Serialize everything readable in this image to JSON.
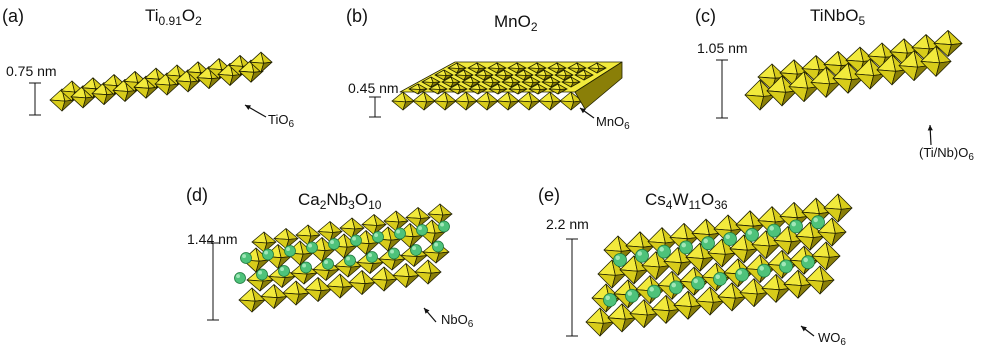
{
  "colors": {
    "octahedron_light": "#f2ea3c",
    "octahedron_mid": "#d8cc1a",
    "octahedron_dark": "#8a7f08",
    "edge": "#222200",
    "sphere": "#4ec27a",
    "sphere_dark": "#1f7a3e"
  },
  "panels": [
    {
      "label": "(a)",
      "formula": [
        {
          "t": "Ti"
        },
        {
          "s": "0.91"
        },
        {
          "t": "O"
        },
        {
          "s": "2"
        }
      ],
      "thickness": "0.75 nm",
      "polyhedron": [
        {
          "t": "TiO"
        },
        {
          "s": "6"
        }
      ]
    },
    {
      "label": "(b)",
      "formula": [
        {
          "t": "MnO"
        },
        {
          "s": "2"
        }
      ],
      "thickness": "0.45 nm",
      "polyhedron": [
        {
          "t": "MnO"
        },
        {
          "s": "6"
        }
      ]
    },
    {
      "label": "(c)",
      "formula": [
        {
          "t": "TiNbO"
        },
        {
          "s": "5"
        }
      ],
      "thickness": "1.05 nm",
      "polyhedron": [
        {
          "t": "(Ti/Nb)O"
        },
        {
          "s": "6"
        }
      ]
    },
    {
      "label": "(d)",
      "formula": [
        {
          "t": "Ca"
        },
        {
          "s": "2"
        },
        {
          "t": "Nb"
        },
        {
          "s": "3"
        },
        {
          "t": "O"
        },
        {
          "s": "10"
        }
      ],
      "thickness": "1.44 nm",
      "polyhedron": [
        {
          "t": "NbO"
        },
        {
          "s": "6"
        }
      ]
    },
    {
      "label": "(e)",
      "formula": [
        {
          "t": "Cs"
        },
        {
          "s": "4"
        },
        {
          "t": "W"
        },
        {
          "s": "11"
        },
        {
          "t": "O"
        },
        {
          "s": "36"
        }
      ],
      "thickness": "2.2 nm",
      "polyhedron": [
        {
          "t": "WO"
        },
        {
          "s": "6"
        }
      ]
    }
  ]
}
